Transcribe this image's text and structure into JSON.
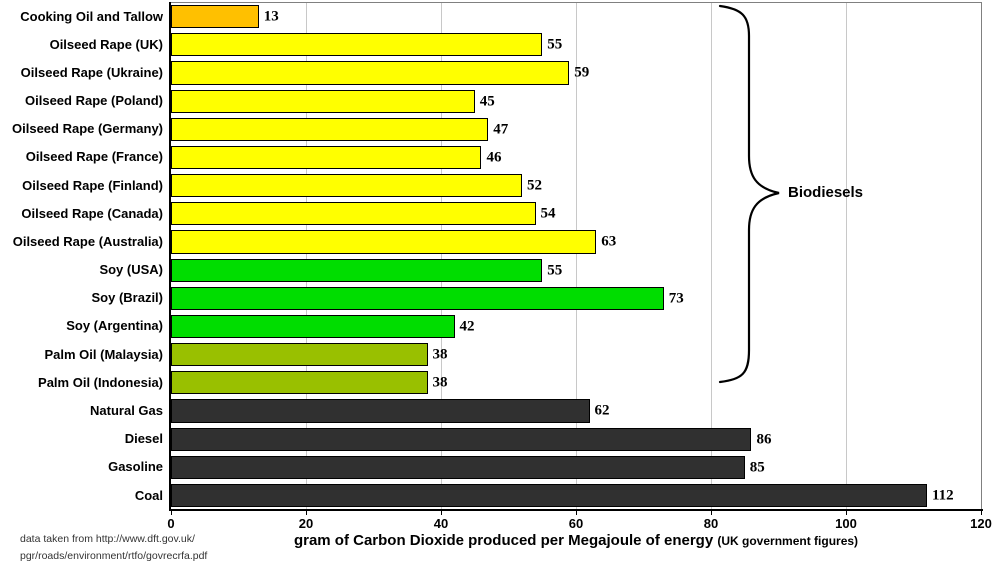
{
  "chart_data": {
    "type": "bar",
    "orientation": "horizontal",
    "categories": [
      "Cooking Oil and Tallow",
      "Oilseed Rape (UK)",
      "Oilseed Rape (Ukraine)",
      "Oilseed Rape (Poland)",
      "Oilseed Rape (Germany)",
      "Oilseed Rape (France)",
      "Oilseed Rape (Finland)",
      "Oilseed Rape (Canada)",
      "Oilseed Rape (Australia)",
      "Soy (USA)",
      "Soy (Brazil)",
      "Soy (Argentina)",
      "Palm Oil (Malaysia)",
      "Palm Oil (Indonesia)",
      "Natural Gas",
      "Diesel",
      "Gasoline",
      "Coal"
    ],
    "values": [
      13,
      55,
      59,
      45,
      47,
      46,
      52,
      54,
      63,
      55,
      73,
      42,
      38,
      38,
      62,
      86,
      85,
      112
    ],
    "bar_colors": [
      "#FFC000",
      "#FFFF00",
      "#FFFF00",
      "#FFFF00",
      "#FFFF00",
      "#FFFF00",
      "#FFFF00",
      "#FFFF00",
      "#FFFF00",
      "#00DD00",
      "#00DD00",
      "#00DD00",
      "#99C000",
      "#99C000",
      "#303030",
      "#303030",
      "#303030",
      "#303030"
    ],
    "xlim": [
      0,
      120
    ],
    "x_ticks": [
      0,
      20,
      40,
      60,
      80,
      100,
      120
    ],
    "xlabel": "gram of Carbon Dioxide produced per Megajoule of energy",
    "xlabel_note": "(UK government figures)",
    "grid": "vertical",
    "group_annotation": {
      "label": "Biodiesels",
      "from_category": "Cooking Oil and Tallow",
      "to_category": "Palm Oil (Indonesia)"
    }
  },
  "footer": {
    "source_line1": "data taken from http://www.dft.gov.uk/",
    "source_line2": "pgr/roads/environment/rtfo/govrecrfa.pdf"
  },
  "colors": {
    "cooking_oil": "#FFC000",
    "oilseed_rape": "#FFFF00",
    "soy": "#00DD00",
    "palm_oil": "#99C000",
    "fossil": "#303030",
    "gridline": "#c8c8c8",
    "plot_border": "#808080",
    "axis": "#000000"
  }
}
